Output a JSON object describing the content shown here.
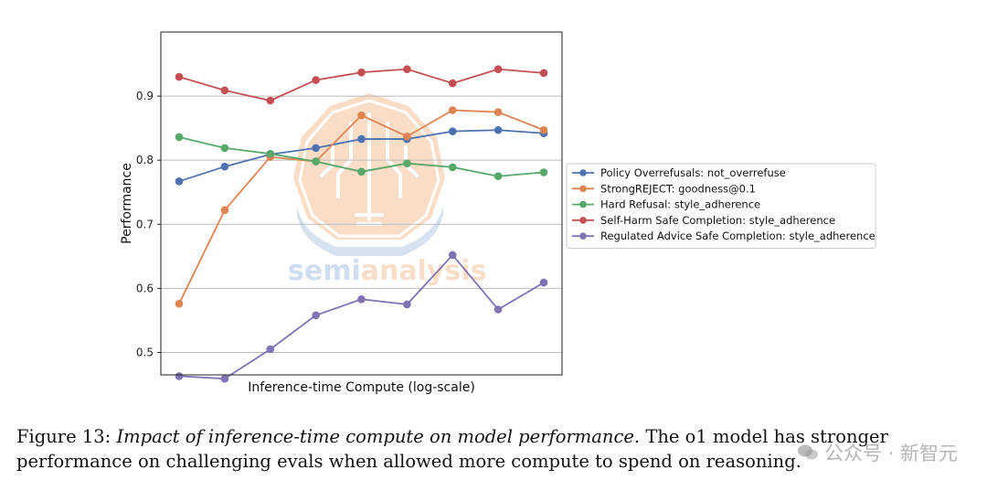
{
  "chart_data": {
    "type": "line",
    "title": "",
    "xlabel": "Inference-time Compute (log-scale)",
    "ylabel": "Performance",
    "x": [
      1,
      2,
      3,
      4,
      5,
      6,
      7,
      8,
      9
    ],
    "x_ticks_shown": false,
    "ylim": [
      0.465,
      1.0
    ],
    "yticks": [
      0.5,
      0.6,
      0.7,
      0.8,
      0.9
    ],
    "ytick_labels": [
      "0.5",
      "0.6",
      "0.7",
      "0.8",
      "0.9"
    ],
    "grid": "horizontal",
    "legend_position": "outside-right",
    "series": [
      {
        "name": "Policy Overrefusals: not_overrefuse",
        "color": "#4c72b0",
        "values": [
          0.767,
          0.79,
          0.809,
          0.819,
          0.833,
          0.833,
          0.845,
          0.847,
          0.842
        ]
      },
      {
        "name": "StrongREJECT: goodness@0.1",
        "color": "#dd8452",
        "values": [
          0.576,
          0.722,
          0.805,
          0.798,
          0.87,
          0.837,
          0.878,
          0.875,
          0.847
        ]
      },
      {
        "name": "Hard Refusal: style_adherence",
        "color": "#55a868",
        "values": [
          0.836,
          0.819,
          0.81,
          0.798,
          0.782,
          0.795,
          0.789,
          0.775,
          0.781
        ]
      },
      {
        "name": "Self-Harm Safe Completion: style_adherence",
        "color": "#c44e52",
        "values": [
          0.93,
          0.909,
          0.893,
          0.925,
          0.937,
          0.942,
          0.92,
          0.942,
          0.936
        ]
      },
      {
        "name": "Regulated Advice Safe Completion: style_adherence",
        "color": "#8172b3",
        "values": [
          0.463,
          0.459,
          0.505,
          0.558,
          0.583,
          0.575,
          0.652,
          0.567,
          0.609
        ]
      }
    ]
  },
  "overlay_logo": {
    "text_part1": "semi",
    "text_part2": "analysis"
  },
  "caption": {
    "label": "Figure 13:",
    "italic": "Impact of inference-time compute on model performance.",
    "rest": " The o1 model has stronger performance on challenging evals when allowed more compute to spend on reasoning."
  },
  "watermark": {
    "text": "公众号 · 新智元"
  }
}
